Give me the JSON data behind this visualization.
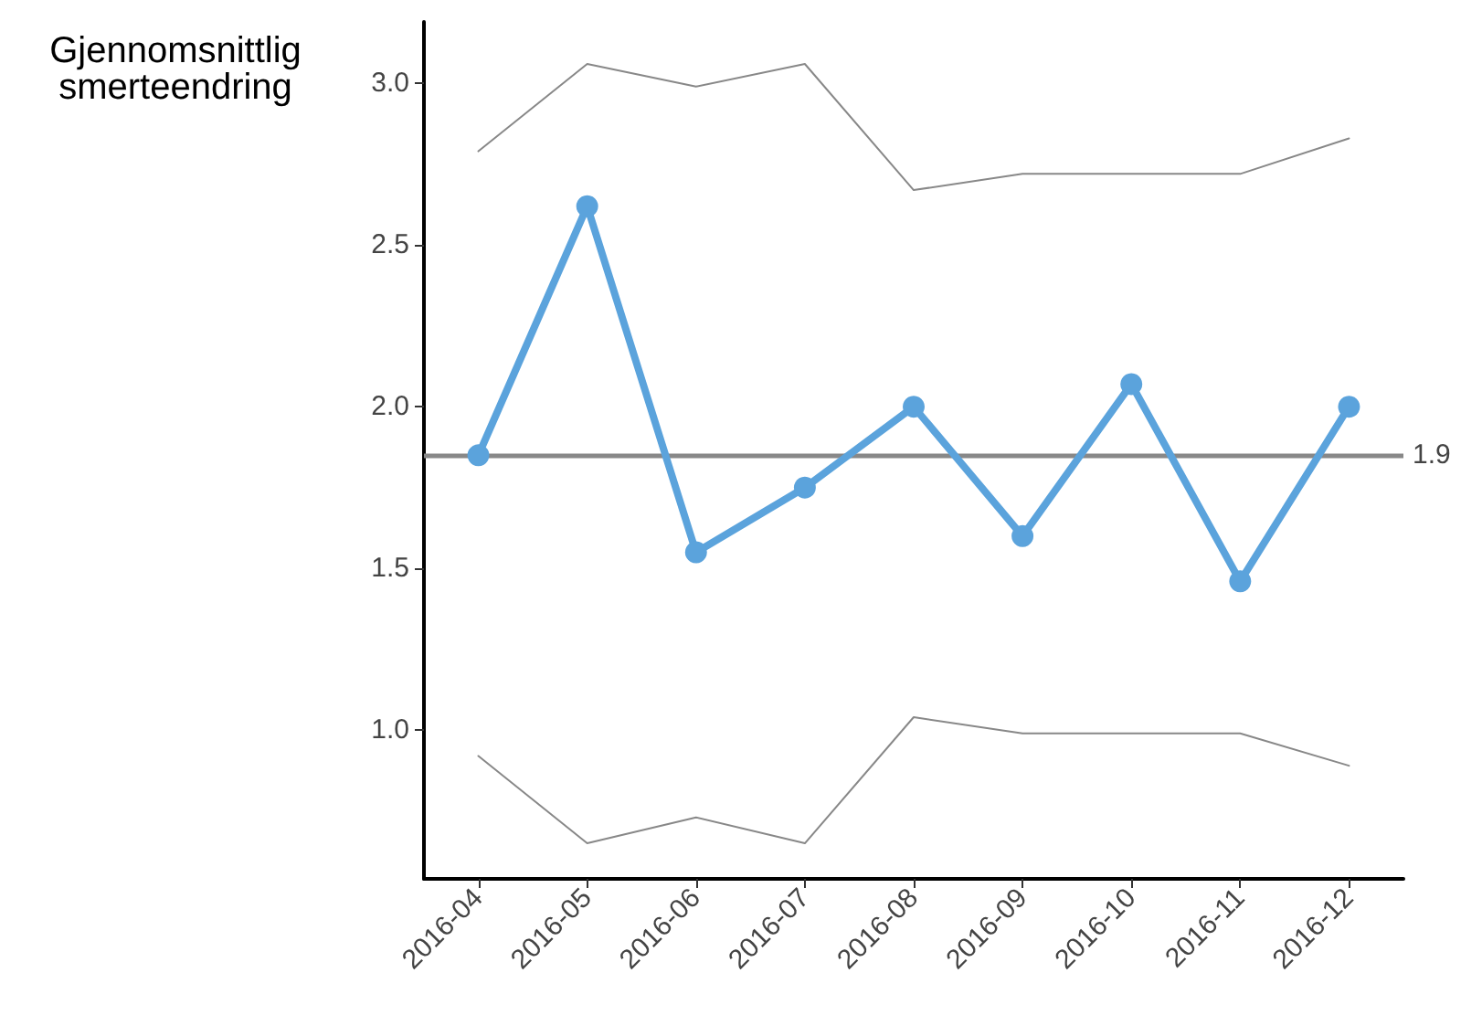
{
  "chart_data": {
    "type": "line",
    "ylabel": "Gjennomsnittlig\nsmerteendring",
    "categories": [
      "2016-04",
      "2016-05",
      "2016-06",
      "2016-07",
      "2016-08",
      "2016-09",
      "2016-10",
      "2016-11",
      "2016-12"
    ],
    "series": [
      {
        "color": "#5ba3dc",
        "values": [
          1.85,
          2.62,
          1.55,
          1.75,
          2.0,
          1.6,
          2.07,
          1.46,
          2.0
        ],
        "marker": "circle"
      },
      {
        "color": "#888888",
        "values": [
          2.79,
          3.06,
          2.99,
          3.06,
          2.67,
          2.72,
          2.72,
          2.72,
          2.83
        ],
        "marker": "none"
      },
      {
        "color": "#888888",
        "values": [
          0.92,
          0.65,
          0.73,
          0.65,
          1.04,
          0.99,
          0.99,
          0.99,
          0.89
        ],
        "marker": "none"
      }
    ],
    "ylim": [
      0.54,
      3.19
    ],
    "yticks": [
      {
        "value": 1,
        "label": "1.0"
      },
      {
        "value": 1.5,
        "label": "1.5"
      },
      {
        "value": 2,
        "label": "2.0"
      },
      {
        "value": 2.5,
        "label": "2.5"
      },
      {
        "value": 3,
        "label": "3.0"
      }
    ],
    "ref_lines": [
      {
        "axis": "y",
        "value": 1.85,
        "label": "1.9",
        "color": "#888888"
      }
    ],
    "grid": false,
    "line_style": "solid"
  }
}
